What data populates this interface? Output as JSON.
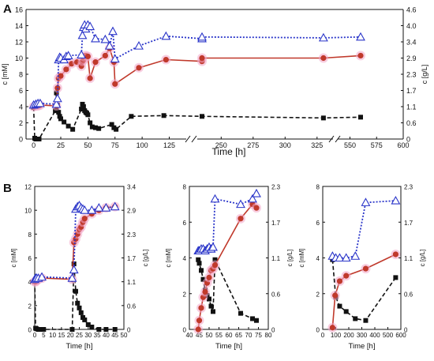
{
  "panel_labels": {
    "a": "A",
    "b": "B"
  },
  "chart_data": [
    {
      "id": "A",
      "type": "line",
      "title": "",
      "xlabel": "Time [h]",
      "ylabel": "c [mM]",
      "y2label": "c [g/L]",
      "x_ticks_seg1": [
        0,
        25,
        50,
        75,
        100,
        125
      ],
      "x_ticks_seg2": [
        250,
        275,
        300,
        325
      ],
      "x_ticks_seg3": [
        550,
        575,
        600
      ],
      "ylim": [
        0,
        16
      ],
      "y_ticks": [
        0,
        2,
        4,
        6,
        8,
        10,
        12,
        14,
        16
      ],
      "y2_ticks": [
        "0",
        "0.6",
        "1.1",
        "1.7",
        "2.3",
        "2.9",
        "3.4",
        "4.0",
        "4.6"
      ],
      "series": [
        {
          "marker": "square",
          "color": "#111111",
          "x": [
            0,
            1,
            2,
            3,
            4,
            5,
            20,
            21,
            22,
            23,
            24,
            25,
            28,
            32,
            36,
            44,
            45,
            46,
            47,
            48,
            49,
            50,
            52,
            54,
            57,
            60,
            72,
            74,
            76,
            90,
            120,
            150,
            330,
            560
          ],
          "y": [
            3.9,
            0.1,
            0.0,
            0.0,
            0.0,
            0.0,
            3.5,
            5.7,
            4.2,
            3.3,
            2.8,
            2.5,
            2.1,
            1.6,
            1.2,
            3.7,
            4.3,
            4.0,
            3.5,
            3.3,
            3.2,
            3.0,
            2.0,
            1.5,
            1.4,
            1.3,
            1.8,
            1.4,
            1.2,
            2.8,
            2.9,
            2.8,
            2.6,
            2.7
          ]
        },
        {
          "marker": "circle",
          "color": "#c0392b",
          "x": [
            0,
            2,
            4,
            6,
            21,
            22,
            23,
            25,
            30,
            35,
            40,
            44,
            45,
            46,
            47,
            48,
            50,
            52,
            57,
            66,
            70,
            74,
            75,
            97,
            122,
            139,
            155,
            330,
            560
          ],
          "y": [
            4.0,
            4.1,
            4.1,
            4.2,
            4.1,
            6.3,
            7.5,
            7.8,
            8.6,
            9.3,
            9.5,
            9.0,
            9.6,
            9.8,
            10.1,
            10.3,
            10.2,
            7.5,
            9.5,
            10.3,
            11.2,
            9.5,
            6.8,
            8.8,
            9.8,
            9.6,
            10.0,
            10.0,
            10.3
          ]
        },
        {
          "marker": "triangle",
          "color": "#2a35c9",
          "x": [
            0,
            2,
            4,
            6,
            21,
            22,
            23,
            24,
            25,
            28,
            30,
            32,
            44,
            45,
            46,
            47,
            48,
            50,
            52,
            57,
            66,
            70,
            73,
            75,
            97,
            122,
            139,
            155,
            330,
            560
          ],
          "y": [
            4.2,
            4.3,
            4.4,
            4.4,
            4.3,
            5.0,
            9.8,
            10.1,
            10.0,
            9.8,
            10.2,
            10.3,
            10.4,
            12.8,
            13.8,
            14.1,
            13.6,
            14.1,
            13.9,
            12.4,
            12.3,
            11.5,
            13.3,
            9.9,
            11.5,
            12.7,
            12.4,
            12.6,
            12.5,
            12.6
          ]
        }
      ]
    },
    {
      "id": "B1",
      "type": "line",
      "xlabel": "Time [h]",
      "ylabel": "c [mM]",
      "y2label": "c [g/L]",
      "xlim": [
        0,
        50
      ],
      "x_ticks": [
        0,
        5,
        10,
        15,
        20,
        25,
        30,
        35,
        40,
        45,
        50
      ],
      "ylim": [
        0,
        12
      ],
      "y_ticks": [
        0,
        2,
        4,
        6,
        8,
        10,
        12
      ],
      "y2_ticks": [
        "0",
        "0.6",
        "1.1",
        "1.7",
        "2.3",
        "2.9",
        "3.4"
      ],
      "series": [
        {
          "marker": "square",
          "color": "#111111",
          "x": [
            0,
            0.5,
            1,
            2,
            3,
            4,
            5,
            21,
            22,
            23,
            24,
            25,
            26,
            27,
            28,
            30,
            32,
            36,
            40,
            45
          ],
          "y": [
            4.0,
            0.1,
            0.05,
            0.0,
            0.0,
            0.0,
            0.0,
            0.0,
            5.5,
            3.2,
            2.2,
            1.8,
            1.4,
            1.0,
            0.8,
            0.4,
            0.2,
            0.0,
            0.0,
            0.0
          ]
        },
        {
          "marker": "circle",
          "color": "#c0392b",
          "x": [
            0,
            0.5,
            1,
            2,
            4,
            21,
            22,
            23,
            24,
            25,
            26,
            27,
            28,
            32,
            36,
            40,
            45
          ],
          "y": [
            4.0,
            4.0,
            4.1,
            4.2,
            4.3,
            4.2,
            7.3,
            7.6,
            8.0,
            8.4,
            8.6,
            9.0,
            9.3,
            9.7,
            10.0,
            10.2,
            10.3
          ]
        },
        {
          "marker": "triangle",
          "color": "#2a35c9",
          "x": [
            0,
            0.5,
            1,
            2,
            4,
            21,
            22,
            23,
            24,
            25,
            26,
            27,
            28,
            32,
            36,
            40,
            45
          ],
          "y": [
            4.2,
            4.3,
            4.3,
            4.3,
            4.4,
            4.3,
            5.0,
            10.1,
            10.3,
            10.4,
            10.2,
            10.1,
            10.0,
            10.0,
            10.2,
            10.2,
            10.3
          ]
        }
      ]
    },
    {
      "id": "B2",
      "type": "line",
      "xlabel": "Time [h]",
      "ylabel": "c [mM]",
      "y2label": "c [g/L]",
      "xlim": [
        40,
        80
      ],
      "x_ticks": [
        40,
        45,
        50,
        55,
        60,
        65,
        70,
        75,
        80
      ],
      "ylim": [
        0,
        8
      ],
      "y_ticks": [
        0,
        2,
        4,
        6,
        8
      ],
      "y2_ticks": [
        "0",
        "0.6",
        "1.1",
        "1.7",
        "2.3"
      ],
      "series": [
        {
          "marker": "square",
          "color": "#111111",
          "x": [
            44.5,
            45,
            46,
            47,
            48,
            49,
            50,
            51,
            52,
            53,
            66,
            72,
            74
          ],
          "y": [
            3.9,
            3.7,
            3.3,
            2.8,
            2.2,
            1.9,
            1.7,
            1.3,
            1.0,
            3.9,
            0.9,
            0.6,
            0.5
          ]
        },
        {
          "marker": "circle",
          "color": "#c0392b",
          "x": [
            44.5,
            45,
            46,
            47,
            48,
            49,
            50,
            51,
            52,
            53,
            66,
            72,
            74
          ],
          "y": [
            0.0,
            0.5,
            1.2,
            1.8,
            2.1,
            2.6,
            2.9,
            3.3,
            3.4,
            3.6,
            6.2,
            7.0,
            6.8
          ]
        },
        {
          "marker": "triangle",
          "color": "#2a35c9",
          "x": [
            44.5,
            45,
            46,
            47,
            48,
            49,
            50,
            51,
            52,
            53,
            66,
            72,
            74
          ],
          "y": [
            4.4,
            4.4,
            4.5,
            4.5,
            4.4,
            4.5,
            4.6,
            4.5,
            4.6,
            7.3,
            7.0,
            7.3,
            7.6
          ]
        }
      ]
    },
    {
      "id": "B3",
      "type": "line",
      "xlabel": "Time [h]",
      "ylabel": "c [mM]",
      "y2label": "c [g/L]",
      "xlim": [
        0,
        600
      ],
      "x_ticks": [
        0,
        100,
        200,
        300,
        400,
        500,
        600
      ],
      "ylim": [
        0,
        8
      ],
      "y_ticks": [
        0,
        2,
        4,
        6,
        8
      ],
      "y2_ticks": [
        "0",
        "0.6",
        "1.1",
        "1.7",
        "2.3"
      ],
      "series": [
        {
          "marker": "square",
          "color": "#111111",
          "x": [
            75,
            100,
            130,
            180,
            250,
            330,
            560
          ],
          "y": [
            3.9,
            1.8,
            1.3,
            1.0,
            0.6,
            0.5,
            2.9
          ]
        },
        {
          "marker": "circle",
          "color": "#c0392b",
          "x": [
            75,
            95,
            130,
            180,
            330,
            560
          ],
          "y": [
            0.1,
            1.9,
            2.7,
            3.0,
            3.4,
            4.2
          ]
        },
        {
          "marker": "triangle",
          "color": "#2a35c9",
          "x": [
            75,
            100,
            130,
            180,
            250,
            330,
            560
          ],
          "y": [
            4.1,
            4.0,
            4.0,
            4.0,
            4.1,
            7.1,
            7.2
          ]
        }
      ]
    }
  ]
}
